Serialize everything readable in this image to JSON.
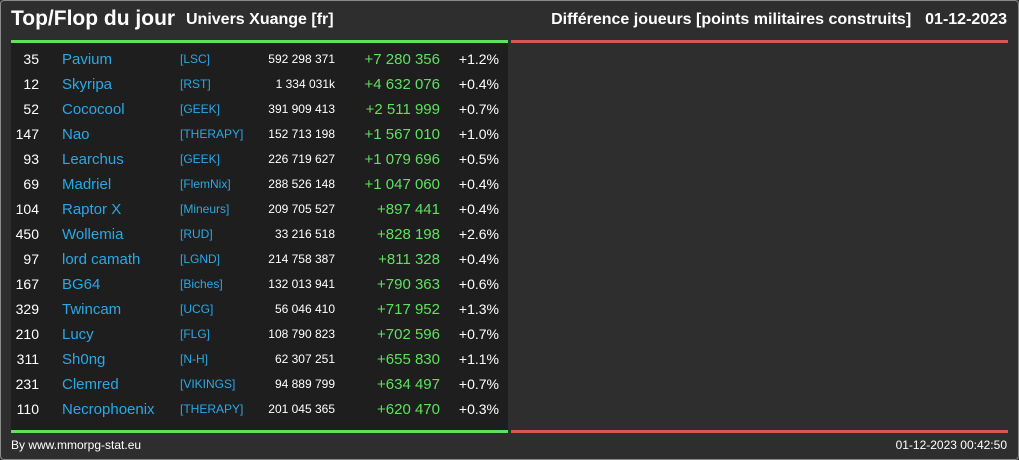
{
  "header": {
    "title": "Top/Flop du jour",
    "universe": "Univers Xuange [fr]",
    "subtitle": "Différence joueurs [points militaires construits]",
    "date": "01-12-2023"
  },
  "colors": {
    "gain": "#5fe05f",
    "loss": "#d8574f",
    "link": "#2aa8e6"
  },
  "top_players": [
    {
      "rank": "35",
      "name": "Pavium",
      "alliance": "[LSC]",
      "points": "592 298 371",
      "diff": "+7 280 356",
      "pct": "+1.2%"
    },
    {
      "rank": "12",
      "name": "Skyripa",
      "alliance": "[RST]",
      "points": "1 334 031k",
      "diff": "+4 632 076",
      "pct": "+0.4%"
    },
    {
      "rank": "52",
      "name": "Cococool",
      "alliance": "[GEEK]",
      "points": "391 909 413",
      "diff": "+2 511 999",
      "pct": "+0.7%"
    },
    {
      "rank": "147",
      "name": "Nao",
      "alliance": "[THERAPY]",
      "points": "152 713 198",
      "diff": "+1 567 010",
      "pct": "+1.0%"
    },
    {
      "rank": "93",
      "name": "Learchus",
      "alliance": "[GEEK]",
      "points": "226 719 627",
      "diff": "+1 079 696",
      "pct": "+0.5%"
    },
    {
      "rank": "69",
      "name": "Madriel",
      "alliance": "[FlemNix]",
      "points": "288 526 148",
      "diff": "+1 047 060",
      "pct": "+0.4%"
    },
    {
      "rank": "104",
      "name": "Raptor X",
      "alliance": "[Mineurs]",
      "points": "209 705 527",
      "diff": "+897 441",
      "pct": "+0.4%"
    },
    {
      "rank": "450",
      "name": "Wollemia",
      "alliance": "[RUD]",
      "points": "33 216 518",
      "diff": "+828 198",
      "pct": "+2.6%"
    },
    {
      "rank": "97",
      "name": "lord camath",
      "alliance": "[LGND]",
      "points": "214 758 387",
      "diff": "+811 328",
      "pct": "+0.4%"
    },
    {
      "rank": "167",
      "name": "BG64",
      "alliance": "[Biches]",
      "points": "132 013 941",
      "diff": "+790 363",
      "pct": "+0.6%"
    },
    {
      "rank": "329",
      "name": "Twincam",
      "alliance": "[UCG]",
      "points": "56 046 410",
      "diff": "+717 952",
      "pct": "+1.3%"
    },
    {
      "rank": "210",
      "name": "Lucy",
      "alliance": "[FLG]",
      "points": "108 790 823",
      "diff": "+702 596",
      "pct": "+0.7%"
    },
    {
      "rank": "311",
      "name": "Sh0ng",
      "alliance": "[N-H]",
      "points": "62 307 251",
      "diff": "+655 830",
      "pct": "+1.1%"
    },
    {
      "rank": "231",
      "name": "Clemred",
      "alliance": "[VIKINGS]",
      "points": "94 889 799",
      "diff": "+634 497",
      "pct": "+0.7%"
    },
    {
      "rank": "110",
      "name": "Necrophoenix",
      "alliance": "[THERAPY]",
      "points": "201 045 365",
      "diff": "+620 470",
      "pct": "+0.3%"
    }
  ],
  "flop_players": [],
  "footer": {
    "source": "By www.mmorpg-stat.eu",
    "timestamp": "01-12-2023 00:42:50"
  }
}
